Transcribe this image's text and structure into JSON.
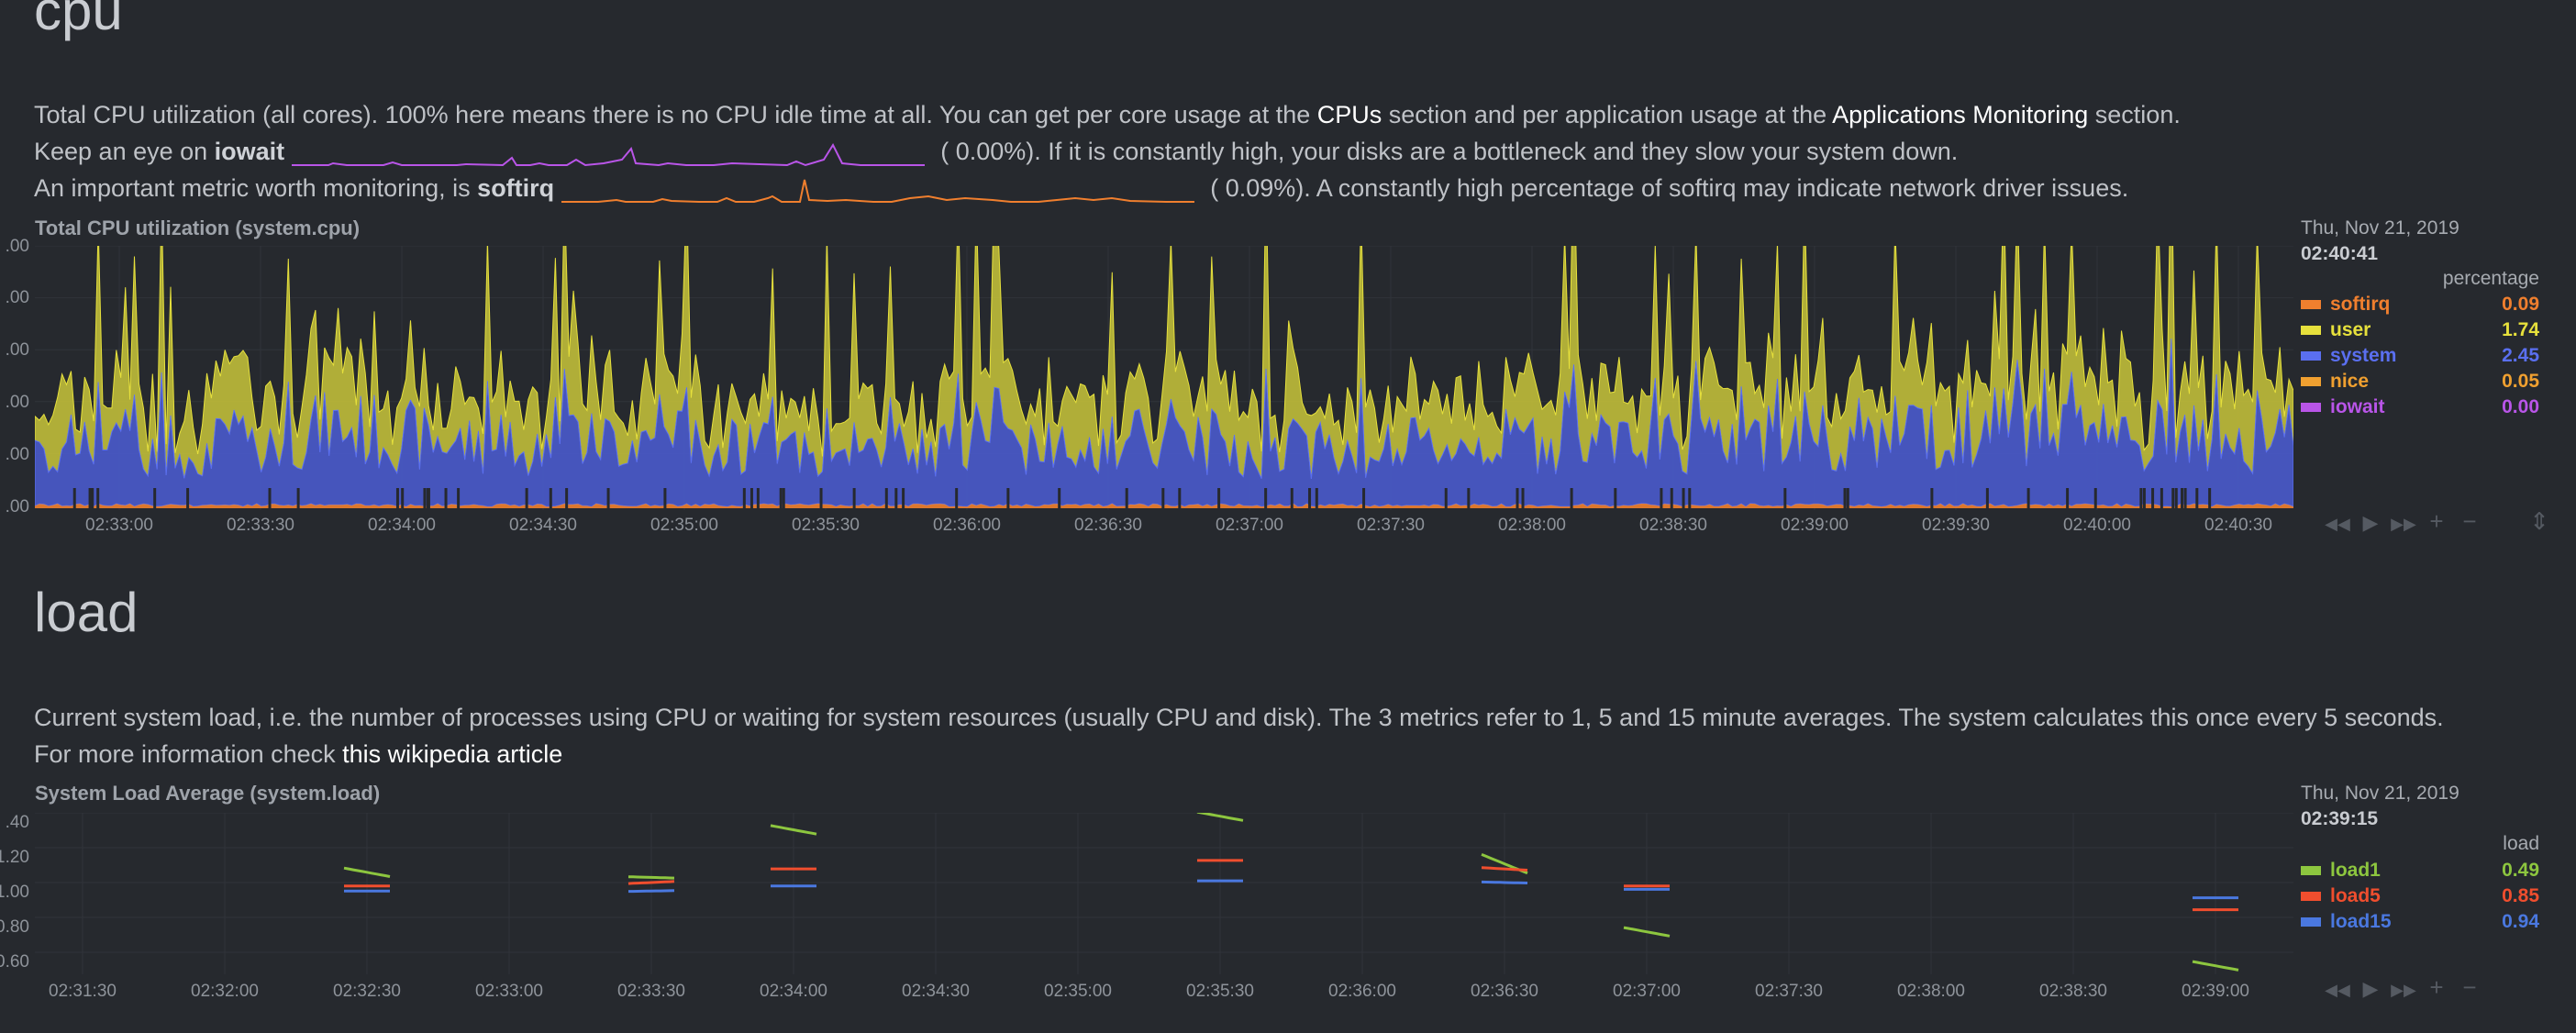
{
  "cpu_section": {
    "heading": "cpu",
    "line1_a": "Total CPU utilization (all cores). 100% here means there is no CPU idle time at all. You can get per core usage at the ",
    "line1_link1": "CPUs",
    "line1_b": " section and per application usage at the ",
    "line1_link2": "Applications Monitoring",
    "line1_c": " section.",
    "line2_a": "Keep an eye on ",
    "line2_bold": "iowait",
    "line2_value": "(      0.00%). If it is constantly high, your disks are a bottleneck and they slow your system down.",
    "line3_a": "An important metric worth monitoring, is ",
    "line3_bold": "softirq",
    "line3_value": "(      0.09%). A constantly high percentage of softirq may indicate network driver issues."
  },
  "cpu_chart": {
    "title": "Total CPU utilization (system.cpu)",
    "legend_date": "Thu, Nov 21, 2019",
    "legend_time": "02:40:41",
    "legend_units": "percentage",
    "legend": [
      {
        "name": "softirq",
        "value": "0.09",
        "color": "#f07f2e"
      },
      {
        "name": "user",
        "value": "1.74",
        "color": "#e6e03c"
      },
      {
        "name": "system",
        "value": "2.45",
        "color": "#5a6ff0"
      },
      {
        "name": "nice",
        "value": "0.05",
        "color": "#f0a030"
      },
      {
        "name": "iowait",
        "value": "0.00",
        "color": "#b955e8"
      }
    ],
    "yticks": [
      ".00",
      ".00",
      ".00",
      ".00",
      ".00",
      ".00"
    ],
    "xticks": [
      "02:33:00",
      "02:33:30",
      "02:34:00",
      "02:34:30",
      "02:35:00",
      "02:35:30",
      "02:36:00",
      "02:36:30",
      "02:37:00",
      "02:37:30",
      "02:38:00",
      "02:38:30",
      "02:39:00",
      "02:39:30",
      "02:40:00",
      "02:40:30"
    ]
  },
  "load_section": {
    "heading": "load",
    "line1": "Current system load, i.e. the number of processes using CPU or waiting for system resources (usually CPU and disk). The 3 metrics refer to 1, 5 and 15 minute averages. The system calculates this once every 5 seconds.",
    "line2_a": "For more information check ",
    "line2_link": "this wikipedia article"
  },
  "load_chart": {
    "title": "System Load Average (system.load)",
    "legend_date": "Thu, Nov 21, 2019",
    "legend_time": "02:39:15",
    "legend_units": "load",
    "legend": [
      {
        "name": "load1",
        "value": "0.49",
        "color": "#8dc63f"
      },
      {
        "name": "load5",
        "value": "0.85",
        "color": "#f04e2e"
      },
      {
        "name": "load15",
        "value": "0.94",
        "color": "#4a78e0"
      }
    ],
    "yticks": [
      ".40",
      "1.20",
      "1.00",
      "0.80",
      "0.60"
    ],
    "xticks": [
      "02:31:30",
      "02:32:00",
      "02:32:30",
      "02:33:00",
      "02:33:30",
      "02:34:00",
      "02:34:30",
      "02:35:00",
      "02:35:30",
      "02:36:00",
      "02:36:30",
      "02:37:00",
      "02:37:30",
      "02:38:00",
      "02:38:30",
      "02:39:00"
    ]
  },
  "toolbar": {
    "rewind": "◀◀",
    "play": "▶",
    "forward": "▶▶",
    "zoom_in": "+",
    "zoom_out": "−",
    "resize": "⇕"
  },
  "chart_data": [
    {
      "type": "area",
      "title": "Total CPU utilization (system.cpu)",
      "ylabel": "percentage",
      "x": [
        "02:33:00",
        "02:33:30",
        "02:34:00",
        "02:34:30",
        "02:35:00",
        "02:35:30",
        "02:36:00",
        "02:36:30",
        "02:37:00",
        "02:37:30",
        "02:38:00",
        "02:38:30",
        "02:39:00",
        "02:39:30",
        "02:40:00",
        "02:40:30"
      ],
      "series": [
        {
          "name": "softirq",
          "values": [
            0.09,
            0.1,
            0.12,
            0.08,
            0.1,
            0.09,
            0.07,
            0.1,
            0.09,
            0.08,
            0.1,
            0.09,
            0.1,
            0.11,
            0.09,
            0.09
          ]
        },
        {
          "name": "user",
          "values": [
            1.8,
            1.6,
            2.4,
            1.7,
            1.9,
            1.5,
            1.6,
            1.8,
            1.7,
            1.6,
            1.9,
            1.7,
            2.1,
            2.5,
            1.9,
            1.74
          ]
        },
        {
          "name": "system",
          "values": [
            2.3,
            2.1,
            2.9,
            2.2,
            2.5,
            2.0,
            2.1,
            2.4,
            2.2,
            2.1,
            2.5,
            2.3,
            2.6,
            3.0,
            2.4,
            2.45
          ]
        },
        {
          "name": "nice",
          "values": [
            0.05,
            0.04,
            0.06,
            0.05,
            0.05,
            0.04,
            0.05,
            0.05,
            0.04,
            0.05,
            0.05,
            0.04,
            0.05,
            0.06,
            0.05,
            0.05
          ]
        },
        {
          "name": "iowait",
          "values": [
            0.0,
            0.0,
            0.01,
            0.0,
            0.0,
            0.0,
            0.0,
            0.0,
            0.0,
            0.0,
            0.0,
            0.0,
            0.0,
            0.0,
            0.0,
            0.0
          ]
        }
      ]
    },
    {
      "type": "line",
      "title": "System Load Average (system.load)",
      "ylabel": "load",
      "ylim": [
        0.5,
        1.45
      ],
      "x": [
        "02:31:30",
        "02:32:00",
        "02:32:30",
        "02:33:00",
        "02:33:30",
        "02:34:00",
        "02:34:30",
        "02:35:00",
        "02:35:30",
        "02:36:00",
        "02:36:30",
        "02:37:00",
        "02:37:30",
        "02:38:00",
        "02:38:30",
        "02:39:00"
      ],
      "series": [
        {
          "name": "load1",
          "values": [
            null,
            null,
            1.1,
            null,
            1.07,
            1.35,
            null,
            null,
            1.43,
            null,
            1.15,
            0.75,
            null,
            null,
            null,
            0.55
          ]
        },
        {
          "name": "load5",
          "values": [
            null,
            null,
            1.02,
            null,
            1.04,
            1.12,
            null,
            null,
            1.17,
            null,
            1.12,
            1.02,
            null,
            null,
            null,
            0.88
          ]
        },
        {
          "name": "load15",
          "values": [
            null,
            null,
            0.99,
            null,
            0.99,
            1.02,
            null,
            null,
            1.05,
            null,
            1.04,
            1.0,
            null,
            null,
            null,
            0.95
          ]
        }
      ]
    }
  ]
}
